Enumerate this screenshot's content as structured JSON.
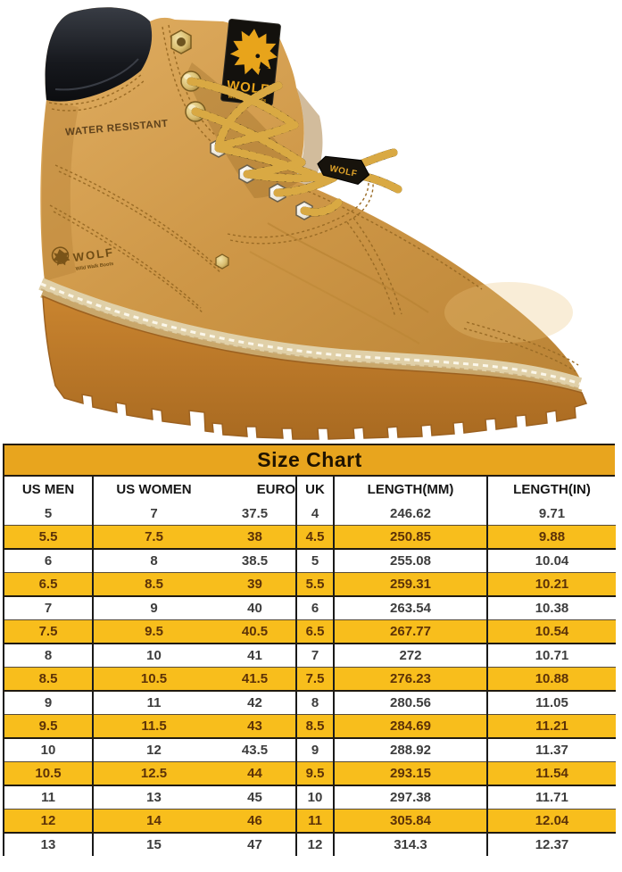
{
  "boot": {
    "side_text": "WATER RESISTANT",
    "tongue_label": {
      "brand": "WOLF",
      "subtext": "Wild Walk Boots"
    },
    "heel_stamp": {
      "brand": "WOLF",
      "subtext": "Wild Walk Boots"
    },
    "lace_keeper_text": "WOLF",
    "colors": {
      "leather": "#CE9747",
      "collar": "#1b1e24",
      "sole_gum": "#C07C2C",
      "welt": "#E0D0A8",
      "brass": "#D8BC6E",
      "logo_gold": "#E8A41B"
    }
  },
  "size_chart": {
    "title": "Size Chart",
    "columns": [
      "US MEN",
      "US WOMEN",
      "EURO",
      "UK",
      "LENGTH(MM)",
      "LENGTH(IN)"
    ],
    "rows": [
      [
        "5",
        "7",
        "37.5",
        "4",
        "246.62",
        "9.71"
      ],
      [
        "5.5",
        "7.5",
        "38",
        "4.5",
        "250.85",
        "9.88"
      ],
      [
        "6",
        "8",
        "38.5",
        "5",
        "255.08",
        "10.04"
      ],
      [
        "6.5",
        "8.5",
        "39",
        "5.5",
        "259.31",
        "10.21"
      ],
      [
        "7",
        "9",
        "40",
        "6",
        "263.54",
        "10.38"
      ],
      [
        "7.5",
        "9.5",
        "40.5",
        "6.5",
        "267.77",
        "10.54"
      ],
      [
        "8",
        "10",
        "41",
        "7",
        "272",
        "10.71"
      ],
      [
        "8.5",
        "10.5",
        "41.5",
        "7.5",
        "276.23",
        "10.88"
      ],
      [
        "9",
        "11",
        "42",
        "8",
        "280.56",
        "11.05"
      ],
      [
        "9.5",
        "11.5",
        "43",
        "8.5",
        "284.69",
        "11.21"
      ],
      [
        "10",
        "12",
        "43.5",
        "9",
        "288.92",
        "11.37"
      ],
      [
        "10.5",
        "12.5",
        "44",
        "9.5",
        "293.15",
        "11.54"
      ],
      [
        "11",
        "13",
        "45",
        "10",
        "297.38",
        "11.71"
      ],
      [
        "12",
        "14",
        "46",
        "11",
        "305.84",
        "12.04"
      ],
      [
        "13",
        "15",
        "47",
        "12",
        "314.3",
        "12.37"
      ]
    ],
    "highlight_color": "#F8BE1C",
    "title_band_color": "#E8A51E"
  }
}
